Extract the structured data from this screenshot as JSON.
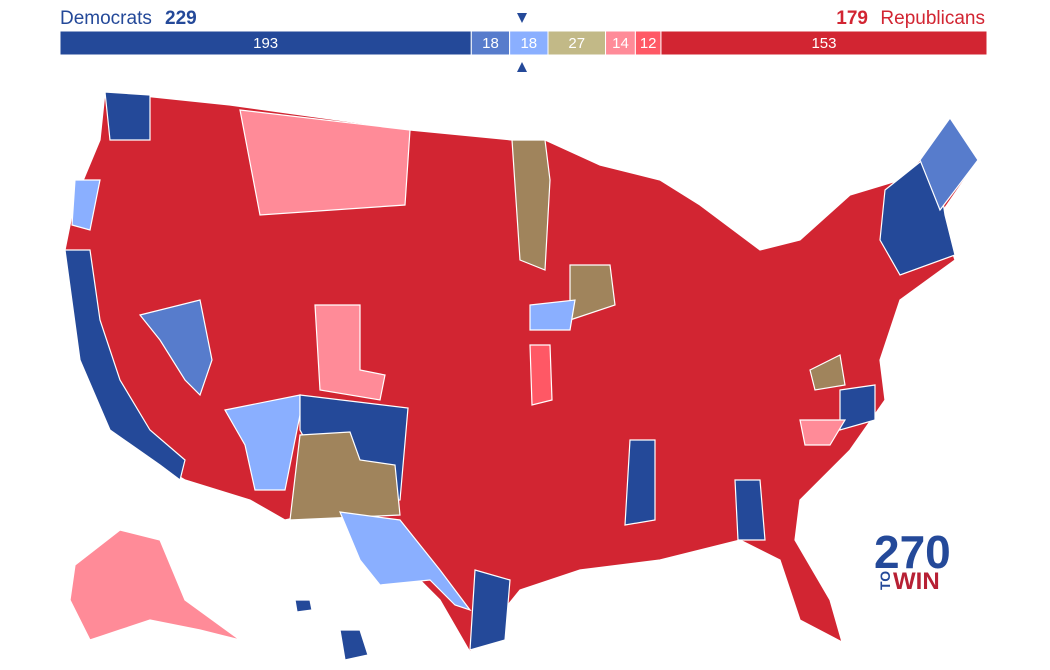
{
  "header": {
    "left_label": "Democrats",
    "left_total": 229,
    "right_total": 179,
    "right_label": "Republicans"
  },
  "bar": {
    "segments": [
      {
        "value": 193,
        "color": "#244999"
      },
      {
        "value": 18,
        "color": "#577ccc"
      },
      {
        "value": 18,
        "color": "#8aafff"
      },
      {
        "value": 27,
        "color": "#c2b987"
      },
      {
        "value": 14,
        "color": "#ff8b98"
      },
      {
        "value": 12,
        "color": "#ff5865"
      },
      {
        "value": 153,
        "color": "#d22532"
      }
    ]
  },
  "logo": {
    "number": "270",
    "to": "TO",
    "win": "WIN"
  }
}
